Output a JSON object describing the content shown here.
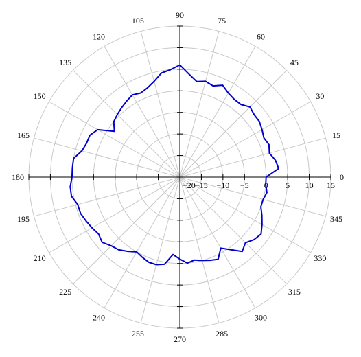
{
  "chart_data": {
    "type": "line",
    "subtype": "polar",
    "title": "",
    "angle_unit": "degrees",
    "angle_ticks": [
      0,
      15,
      30,
      45,
      60,
      75,
      90,
      105,
      120,
      135,
      150,
      165,
      180,
      195,
      210,
      225,
      240,
      255,
      270,
      285,
      300,
      315,
      330,
      345
    ],
    "radial_ticks": [
      -20,
      -15,
      -10,
      -5,
      0,
      5,
      10,
      15
    ],
    "rlim": [
      -20,
      15
    ],
    "grid": true,
    "series": [
      {
        "color": "#0000cc",
        "angles": [
          0,
          5,
          10,
          15,
          20,
          25,
          30,
          35,
          40,
          45,
          50,
          55,
          60,
          65,
          70,
          75,
          80,
          85,
          90,
          95,
          100,
          105,
          110,
          115,
          120,
          125,
          130,
          135,
          140,
          145,
          150,
          155,
          160,
          165,
          170,
          175,
          180,
          185,
          190,
          195,
          200,
          205,
          210,
          215,
          220,
          225,
          230,
          235,
          240,
          245,
          250,
          255,
          260,
          265,
          270,
          275,
          280,
          285,
          290,
          295,
          300,
          305,
          310,
          315,
          320,
          325,
          330,
          335,
          340,
          345,
          350,
          355
        ],
        "values": [
          0.0,
          3.0,
          2.5,
          1.5,
          2.0,
          1.5,
          2.0,
          2.5,
          2.5,
          3.0,
          2.0,
          2.0,
          2.5,
          3.5,
          2.5,
          3.0,
          2.5,
          4.0,
          6.0,
          5.0,
          4.5,
          3.0,
          2.0,
          1.5,
          2.0,
          1.5,
          1.0,
          0.5,
          0.0,
          -1.5,
          2.0,
          3.0,
          3.0,
          3.5,
          5.0,
          5.0,
          5.0,
          5.5,
          5.5,
          4.5,
          4.5,
          4.0,
          3.5,
          3.0,
          3.5,
          2.5,
          2.0,
          1.0,
          0.0,
          0.5,
          1.0,
          1.0,
          0.5,
          -2.0,
          -1.0,
          0.0,
          -0.5,
          0.0,
          0.5,
          1.0,
          -1.0,
          0.5,
          2.5,
          1.5,
          2.5,
          3.0,
          2.0,
          1.0,
          0.0,
          0.0,
          0.5,
          0.0
        ]
      }
    ]
  }
}
